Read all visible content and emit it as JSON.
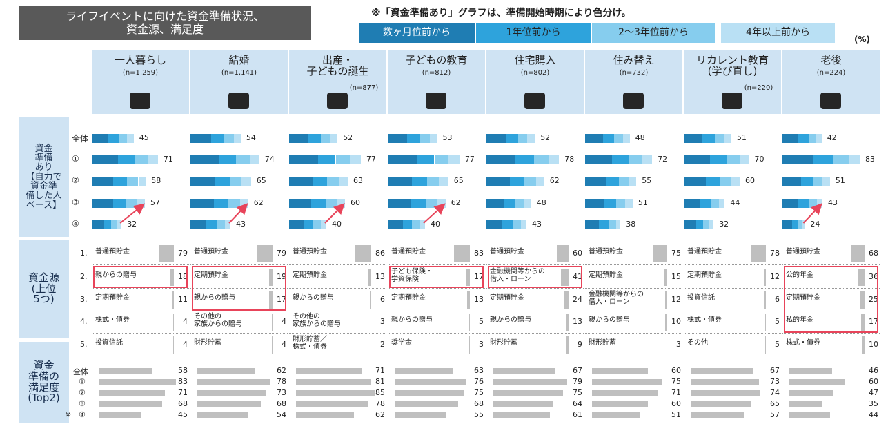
{
  "title": "ライフイベントに向けた資金準備状況、\n資金源、満足度",
  "note": "※「資金準備あり」グラフは、準備開始時期により色分け。",
  "legend": [
    {
      "name": "数ヶ月位前から",
      "color": "#1f7db3"
    },
    {
      "name": "1年位前から",
      "color": "#2ea3dc"
    },
    {
      "name": "2～3年位前から",
      "color": "#86cdee"
    },
    {
      "name": "4年以上前から",
      "color": "#b9e0f4"
    }
  ],
  "unit": "(%)",
  "sections": [
    "資金\n準備\nあり\n【自力で\n資金準\n備した人\nベース】",
    "資金源\n(上位\n5つ)",
    "資金\n準備の\n満足度\n(Top2)"
  ],
  "prep_rows": [
    "全体",
    "①",
    "②",
    "③",
    "④"
  ],
  "source_ranks": [
    "1.",
    "2.",
    "3.",
    "4.",
    "5."
  ],
  "satisfaction_rows": [
    "全体",
    "①",
    "②",
    "③",
    "④"
  ],
  "satisfaction_mark": "※",
  "events": [
    {
      "name": "一人暮らし",
      "n": "(n=1,259)",
      "arrow": true,
      "prep_segments": [
        [
          18,
          11,
          9,
          7
        ],
        [
          28,
          18,
          14,
          11
        ],
        [
          23,
          15,
          12,
          8
        ],
        [
          23,
          14,
          11,
          9
        ],
        [
          13,
          8,
          6,
          5
        ]
      ],
      "prep_totals": [
        45,
        71,
        58,
        57,
        32
      ],
      "sources": [
        {
          "name": "普通預貯金",
          "value": 79
        },
        {
          "name": "親からの贈与",
          "value": 18
        },
        {
          "name": "定期預貯金",
          "value": 11
        },
        {
          "name": "株式・債券",
          "value": 4
        },
        {
          "name": "投資信託",
          "value": 4
        }
      ],
      "highlight": [
        1,
        1
      ],
      "satisfaction": [
        58,
        83,
        71,
        68,
        45
      ]
    },
    {
      "name": "結婚",
      "n": "(n=1,141)",
      "arrow": true,
      "prep_segments": [
        [
          22,
          14,
          11,
          7
        ],
        [
          30,
          19,
          15,
          10
        ],
        [
          26,
          16,
          13,
          10
        ],
        [
          25,
          16,
          12,
          9
        ],
        [
          17,
          11,
          9,
          6
        ]
      ],
      "prep_totals": [
        54,
        74,
        65,
        62,
        43
      ],
      "sources": [
        {
          "name": "普通預貯金",
          "value": 79
        },
        {
          "name": "定期預貯金",
          "value": 19
        },
        {
          "name": "親からの贈与",
          "value": 17
        },
        {
          "name": "その他の\n家族からの贈与",
          "value": 4
        },
        {
          "name": "財形貯蓄",
          "value": 4
        }
      ],
      "highlight": [
        1,
        2
      ],
      "satisfaction": [
        62,
        78,
        73,
        68,
        54
      ]
    },
    {
      "name": "出産・\n子どもの誕生",
      "n": "(n=877)",
      "arrow": true,
      "prep_segments": [
        [
          21,
          13,
          10,
          8
        ],
        [
          31,
          19,
          15,
          12
        ],
        [
          25,
          16,
          13,
          9
        ],
        [
          24,
          15,
          12,
          9
        ],
        [
          16,
          10,
          8,
          6
        ]
      ],
      "prep_totals": [
        52,
        77,
        63,
        60,
        40
      ],
      "sources": [
        {
          "name": "普通預貯金",
          "value": 86
        },
        {
          "name": "定期預貯金",
          "value": 13
        },
        {
          "name": "親からの贈与",
          "value": 6
        },
        {
          "name": "その他の\n家族からの贈与",
          "value": 3
        },
        {
          "name": "財形貯蓄／\n株式・債券",
          "value": 2
        }
      ],
      "satisfaction": [
        71,
        81,
        85,
        78,
        62
      ]
    },
    {
      "name": "子どもの教育",
      "n": "(n=812)",
      "arrow": true,
      "prep_segments": [
        [
          21,
          13,
          11,
          8
        ],
        [
          31,
          19,
          15,
          12
        ],
        [
          26,
          16,
          13,
          10
        ],
        [
          25,
          16,
          12,
          9
        ],
        [
          16,
          10,
          8,
          6
        ]
      ],
      "prep_totals": [
        53,
        77,
        65,
        62,
        40
      ],
      "sources": [
        {
          "name": "普通預貯金",
          "value": 83
        },
        {
          "name": "子ども保険・\n学資保険",
          "value": 17
        },
        {
          "name": "定期預貯金",
          "value": 13
        },
        {
          "name": "親からの贈与",
          "value": 5
        },
        {
          "name": "奨学金",
          "value": 3
        }
      ],
      "highlight": [
        1,
        1
      ],
      "satisfaction": [
        63,
        76,
        75,
        68,
        55
      ]
    },
    {
      "name": "住宅購入",
      "n": "(n=802)",
      "prep_segments": [
        [
          21,
          13,
          10,
          8
        ],
        [
          31,
          20,
          16,
          11
        ],
        [
          25,
          16,
          12,
          9
        ],
        [
          19,
          12,
          10,
          7
        ],
        [
          17,
          11,
          9,
          6
        ]
      ],
      "prep_totals": [
        52,
        78,
        62,
        48,
        43
      ],
      "sources": [
        {
          "name": "普通預貯金",
          "value": 60
        },
        {
          "name": "金融機関等からの\n借入・ローン",
          "value": 41
        },
        {
          "name": "定期預貯金",
          "value": 24
        },
        {
          "name": "親からの贈与",
          "value": 13
        },
        {
          "name": "財形貯蓄",
          "value": 9
        }
      ],
      "highlight": [
        1,
        1
      ],
      "satisfaction": [
        67,
        79,
        75,
        64,
        61
      ]
    },
    {
      "name": "住み替え",
      "n": "(n=732)",
      "prep_segments": [
        [
          19,
          12,
          10,
          7
        ],
        [
          29,
          18,
          14,
          11
        ],
        [
          22,
          14,
          11,
          8
        ],
        [
          20,
          13,
          10,
          8
        ],
        [
          15,
          10,
          8,
          5
        ]
      ],
      "prep_totals": [
        48,
        72,
        55,
        51,
        38
      ],
      "sources": [
        {
          "name": "普通預貯金",
          "value": 75
        },
        {
          "name": "定期預貯金",
          "value": 15
        },
        {
          "name": "金融機関等からの\n借入・ローン",
          "value": 12
        },
        {
          "name": "親からの贈与",
          "value": 10
        },
        {
          "name": "財形貯蓄",
          "value": 3
        }
      ],
      "satisfaction": [
        60,
        75,
        71,
        60,
        51
      ]
    },
    {
      "name": "リカレント教育\n(学び直し)",
      "n": "(n=220)",
      "prep_segments": [
        [
          20,
          13,
          10,
          8
        ],
        [
          28,
          18,
          14,
          10
        ],
        [
          24,
          15,
          12,
          9
        ],
        [
          18,
          11,
          9,
          6
        ],
        [
          13,
          8,
          6,
          5
        ]
      ],
      "prep_totals": [
        51,
        70,
        60,
        44,
        32
      ],
      "sources": [
        {
          "name": "普通預貯金",
          "value": 78
        },
        {
          "name": "定期預貯金",
          "value": 12
        },
        {
          "name": "投資信託",
          "value": 6
        },
        {
          "name": "株式・債券",
          "value": 5
        },
        {
          "name": "その他",
          "value": 5
        }
      ],
      "satisfaction": [
        67,
        73,
        74,
        65,
        57
      ]
    },
    {
      "name": "老後",
      "n": "(n=224)",
      "arrow": true,
      "prep_segments": [
        [
          17,
          11,
          8,
          6
        ],
        [
          33,
          21,
          17,
          12
        ],
        [
          20,
          13,
          10,
          8
        ],
        [
          17,
          11,
          9,
          6
        ],
        [
          10,
          6,
          5,
          3
        ]
      ],
      "prep_totals": [
        42,
        83,
        51,
        43,
        24
      ],
      "sources": [
        {
          "name": "普通預貯金",
          "value": 68
        },
        {
          "name": "公的年金",
          "value": 36
        },
        {
          "name": "定期預貯金",
          "value": 25
        },
        {
          "name": "私的年金",
          "value": 17
        },
        {
          "name": "株式・債券",
          "value": 10
        }
      ],
      "highlight": [
        1,
        3
      ],
      "satisfaction": [
        46,
        60,
        47,
        35,
        44
      ]
    }
  ]
}
